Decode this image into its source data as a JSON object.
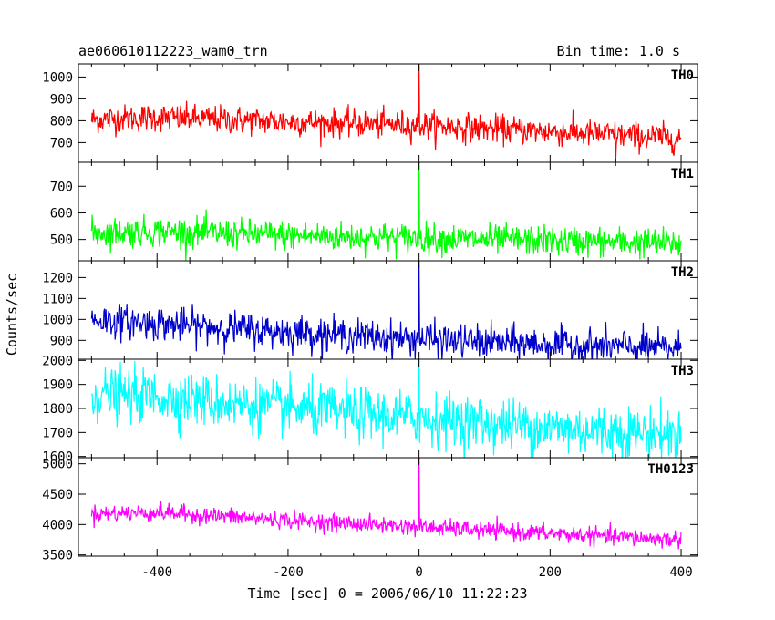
{
  "header": {
    "obs_id": "ae060610112223_wam0_trn",
    "bin_time": "Bin time: 1.0 s"
  },
  "chart_data": {
    "type": "line",
    "title": "ae060610112223_wam0_trn",
    "subtitle": "Bin time: 1.0 s",
    "xlabel": "Time [sec] 0 = 2006/06/10 11:22:23",
    "ylabel": "Counts/sec",
    "xlim": [
      -520,
      425
    ],
    "xticks": [
      -400,
      -200,
      0,
      200,
      400
    ],
    "x_range_data": [
      -500,
      400
    ],
    "bin": 1.0,
    "trigger_time": 0,
    "panels": [
      {
        "name": "TH0",
        "color": "#ff0000",
        "ylim": [
          610,
          1060
        ],
        "yticks": [
          700,
          800,
          900,
          1000
        ],
        "trend": {
          "x": [
            -500,
            -400,
            -200,
            0,
            200,
            400
          ],
          "y": [
            805,
            815,
            795,
            780,
            750,
            720
          ]
        },
        "noise": 32,
        "spike": {
          "x": 0,
          "y": 1060
        },
        "dips": [
          {
            "x": 300,
            "y": 600
          }
        ]
      },
      {
        "name": "TH1",
        "color": "#00ff00",
        "ylim": [
          420,
          790
        ],
        "yticks": [
          500,
          600,
          700
        ],
        "trend": {
          "x": [
            -500,
            -400,
            -200,
            0,
            200,
            400
          ],
          "y": [
            525,
            530,
            515,
            505,
            495,
            485
          ]
        },
        "noise": 28,
        "spike": {
          "x": 0,
          "y": 790
        },
        "dips": []
      },
      {
        "name": "TH2",
        "color": "#0000cc",
        "ylim": [
          810,
          1280
        ],
        "yticks": [
          900,
          1000,
          1100,
          1200
        ],
        "trend": {
          "x": [
            -500,
            -400,
            -200,
            0,
            200,
            400
          ],
          "y": [
            1000,
            980,
            940,
            905,
            880,
            860
          ]
        },
        "noise": 40,
        "spike": {
          "x": 0,
          "y": 1280
        },
        "dips": []
      },
      {
        "name": "TH3",
        "color": "#00ffff",
        "ylim": [
          1595,
          2005
        ],
        "yticks": [
          1600,
          1700,
          1800,
          1900,
          2000
        ],
        "trend": {
          "x": [
            -500,
            -400,
            -200,
            0,
            200,
            400
          ],
          "y": [
            1860,
            1850,
            1800,
            1760,
            1720,
            1690
          ]
        },
        "noise": 55,
        "spike": {
          "x": 0,
          "y": 2005
        },
        "dips": []
      },
      {
        "name": "TH0123",
        "color": "#ff00ff",
        "ylim": [
          3480,
          5100
        ],
        "yticks": [
          3500,
          4000,
          4500,
          5000
        ],
        "trend": {
          "x": [
            -500,
            -400,
            -200,
            0,
            200,
            400
          ],
          "y": [
            4180,
            4200,
            4070,
            3960,
            3850,
            3750
          ]
        },
        "noise": 70,
        "spike": {
          "x": 0,
          "y": 5100
        },
        "dips": []
      }
    ]
  }
}
